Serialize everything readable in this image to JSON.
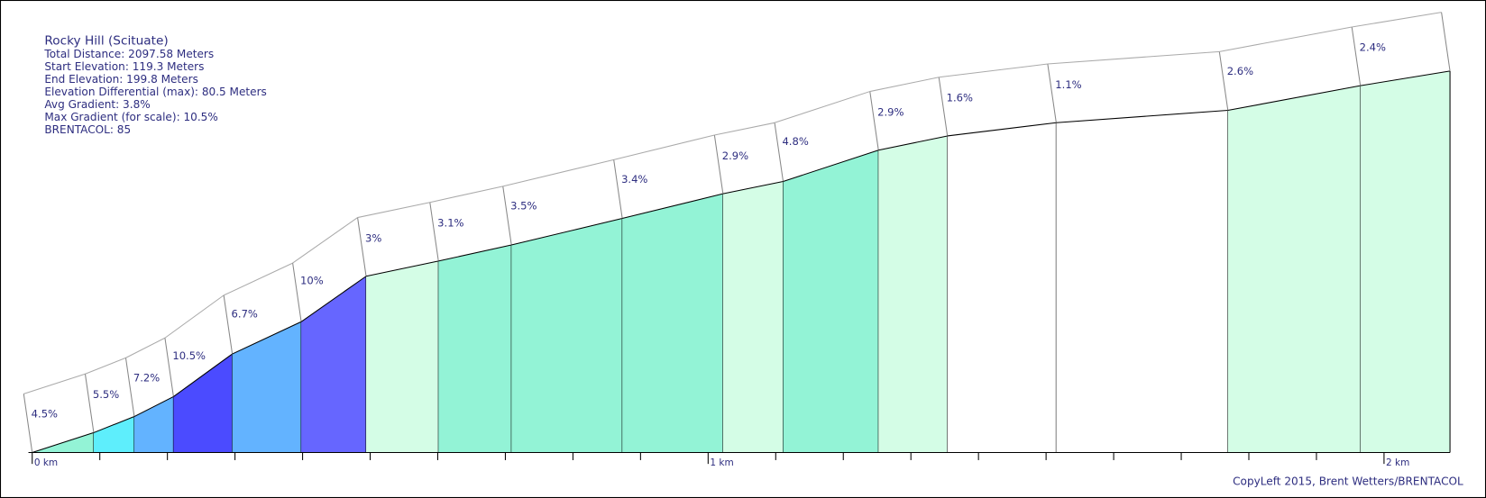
{
  "chart_data": {
    "type": "profile",
    "title": "Rocky Hill (Scituate)",
    "info_lines": [
      "Total Distance: 2097.58 Meters",
      "Start Elevation: 119.3 Meters",
      "End Elevation: 199.8 Meters",
      "Elevation Differential (max): 80.5 Meters",
      "Avg Gradient: 3.8%",
      "Max Gradient (for scale): 10.5%",
      "BRENTACOL: 85"
    ],
    "footer": "CopyLeft 2015, Brent Wetters/BRENTACOL",
    "distances": [
      0,
      0.091,
      0.151,
      0.209,
      0.296,
      0.398,
      0.494,
      0.601,
      0.709,
      0.873,
      1.022,
      1.111,
      1.252,
      1.354,
      1.515,
      1.769,
      1.965,
      2.09758
    ],
    "elevations": [
      119.3,
      123.5,
      126.9,
      131.1,
      140.1,
      146.9,
      156.5,
      159.7,
      163.1,
      168.7,
      173.9,
      176.5,
      183.1,
      186.1,
      188.9,
      191.5,
      196.7,
      199.8
    ],
    "gradients": [
      4.5,
      5.5,
      7.2,
      10.5,
      6.7,
      10,
      3,
      3.1,
      3.5,
      3.4,
      2.9,
      4.8,
      2.9,
      1.6,
      1.1,
      2.6,
      2.4
    ],
    "value_labels": [
      "4.5%",
      "5.5%",
      "7.2%",
      "10.5%",
      "6.7%",
      "10%",
      "3%",
      "3.1%",
      "3.5%",
      "3.4%",
      "2.9%",
      "4.8%",
      "2.9%",
      "1.6%",
      "1.1%",
      "2.6%",
      "2.4%"
    ],
    "colors": [
      "#93f3d6",
      "#5eeefc",
      "#63b3ff",
      "#4b4bff",
      "#63b3ff",
      "#6666ff",
      "#d4fde6",
      "#93f3d6",
      "#93f3d6",
      "#93f3d6",
      "#d4fde6",
      "#93f3d6",
      "#d4fde6",
      "#ffffff",
      "#ffffff",
      "#d4fde6",
      "#d4fde6"
    ],
    "xlim": [
      0,
      2.09758
    ],
    "ylim": [
      119.3,
      199.8
    ],
    "xticks": [
      {
        "value": 0,
        "label": "0 km"
      },
      {
        "value": 1,
        "label": "1 km"
      },
      {
        "value": 2,
        "label": "2 km"
      }
    ],
    "xminorticks": [
      0.1,
      0.2,
      0.3,
      0.4,
      0.5,
      0.6,
      0.7,
      0.8,
      0.9,
      1.1,
      1.2,
      1.3,
      1.4,
      1.5,
      1.6,
      1.7,
      1.8,
      1.9
    ]
  }
}
